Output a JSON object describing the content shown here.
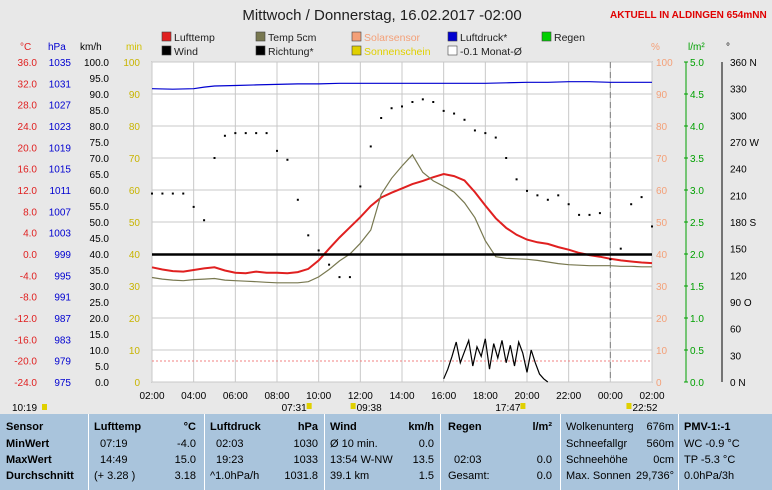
{
  "header": {
    "title": "Mittwoch / Donnerstag, 16.02.2017  -02:00",
    "location": "AKTUELL IN ALDINGEN 654mNN"
  },
  "legend": [
    {
      "label": "Lufttemp",
      "color": "#e02020"
    },
    {
      "label": "Temp 5cm",
      "color": "#787850"
    },
    {
      "label": "Solarsensor",
      "color": "#f4a078",
      "faded": true
    },
    {
      "label": "Luftdruck*",
      "color": "#0000d0"
    },
    {
      "label": "Regen",
      "color": "#00d000"
    },
    {
      "label": "Wind",
      "color": "#000000"
    },
    {
      "label": "Richtung*",
      "color": "#000000"
    },
    {
      "label": "Sonnenschein",
      "color": "#e0d000",
      "faded": true
    },
    {
      "label": "-0.1 Monat-Ø",
      "color": "#ffffff"
    }
  ],
  "axis_units": {
    "temp": "°C",
    "pressure": "hPa",
    "wind": "km/h",
    "sun_min": "min",
    "solar_pct": "%",
    "rain": "l/m²",
    "direction": "°"
  },
  "chart_data": {
    "type": "line",
    "x": [
      "02:00",
      "04:00",
      "06:00",
      "08:00",
      "10:00",
      "12:00",
      "14:00",
      "16:00",
      "18:00",
      "20:00",
      "22:00",
      "00:00",
      "02:00"
    ],
    "time_start": "02:00",
    "ylim_temp": [
      -24.0,
      36.0
    ],
    "ylim_pressure": [
      975,
      1035
    ],
    "ylim_wind": [
      0,
      100
    ],
    "ylim_pct": [
      0,
      100
    ],
    "ylim_rain": [
      0,
      5
    ],
    "ylim_dir": [
      0,
      360
    ],
    "ticks": {
      "temp": [
        "36.0",
        "32.0",
        "28.0",
        "24.0",
        "20.0",
        "16.0",
        "12.0",
        "8.0",
        "4.0",
        "0.0",
        "-4.0",
        "-8.0",
        "-12.0",
        "-16.0",
        "-20.0",
        "-24.0"
      ],
      "pressure": [
        "1035",
        "1031",
        "1027",
        "1023",
        "1019",
        "1015",
        "1011",
        "1007",
        "1003",
        "999",
        "995",
        "991",
        "987",
        "983",
        "979",
        "975"
      ],
      "wind": [
        "100.0",
        "95.0",
        "90.0",
        "85.0",
        "80.0",
        "75.0",
        "70.0",
        "65.0",
        "60.0",
        "55.0",
        "50.0",
        "45.0",
        "40.0",
        "35.0",
        "30.0",
        "25.0",
        "20.0",
        "15.0",
        "10.0",
        "5.0",
        "0.0"
      ],
      "min": [
        "100",
        "90",
        "80",
        "70",
        "60",
        "50",
        "40",
        "30",
        "20",
        "10",
        "0"
      ],
      "pct": [
        "100",
        "90",
        "80",
        "70",
        "60",
        "50",
        "40",
        "30",
        "20",
        "10",
        "0"
      ],
      "rain": [
        "5.0",
        "4.5",
        "4.0",
        "3.5",
        "3.0",
        "2.5",
        "2.0",
        "1.5",
        "1.0",
        "0.5",
        "0.0"
      ],
      "dir": [
        "360 N",
        "330",
        "300",
        "270 W",
        "240",
        "210",
        "180 S",
        "150",
        "120",
        "90 O",
        "60",
        "30",
        "0   N"
      ]
    },
    "series": [
      {
        "name": "Lufttemp",
        "color": "#e02020",
        "x": [
          0,
          0.5,
          1,
          1.5,
          2,
          2.5,
          3,
          3.5,
          4,
          4.5,
          5,
          5.5,
          6,
          6.5,
          7,
          7.5,
          8,
          8.5,
          9,
          9.5,
          10,
          10.5,
          11,
          11.5,
          12,
          12.5,
          13,
          13.5,
          14,
          14.5,
          15,
          15.5,
          16,
          16.5,
          17,
          17.5,
          18,
          18.5,
          19,
          19.5,
          20,
          20.5,
          21,
          21.5,
          22,
          22.5,
          23,
          23.5,
          24
        ],
        "y": [
          -2.5,
          -2.9,
          -3.2,
          -3.3,
          -3.0,
          -2.7,
          -2.5,
          -3.1,
          -3.5,
          -3.6,
          -3.3,
          -3.5,
          -3.5,
          -3.6,
          -3.4,
          -2.8,
          -1.2,
          1.0,
          3.1,
          5.0,
          6.9,
          9.0,
          10.6,
          11.5,
          12.3,
          13.1,
          13.7,
          14.4,
          15.0,
          14.6,
          13.8,
          11.6,
          9.1,
          6.7,
          4.9,
          3.6,
          2.7,
          2.2,
          1.9,
          1.3,
          0.8,
          0.2,
          -0.2,
          -0.5,
          -0.9,
          -1.2,
          -1.4,
          -1.6,
          -1.7
        ]
      },
      {
        "name": "Temp 5cm",
        "color": "#787850",
        "x": [
          0,
          0.5,
          1,
          1.5,
          2,
          2.5,
          3,
          3.5,
          4,
          4.5,
          5,
          5.5,
          6,
          6.5,
          7,
          7.5,
          8,
          8.5,
          9,
          9.5,
          10,
          10.5,
          11,
          11.5,
          12,
          12.5,
          13,
          13.5,
          14,
          14.5,
          15,
          15.5,
          16,
          16.5,
          17,
          17.5,
          18,
          18.5,
          19,
          19.5,
          20,
          20.5,
          21,
          21.5,
          22,
          22.5,
          23,
          23.5,
          24
        ],
        "y": [
          -4.4,
          -4.7,
          -4.9,
          -5.0,
          -4.8,
          -4.7,
          -4.6,
          -4.9,
          -5.0,
          -5.1,
          -5.2,
          -5.3,
          -5.4,
          -5.4,
          -5.4,
          -5.2,
          -4.3,
          -2.9,
          -1.3,
          0.0,
          2.0,
          4.5,
          11.2,
          14.2,
          16.5,
          18.6,
          15.3,
          13.7,
          12.7,
          11.6,
          9.6,
          6.8,
          2.5,
          -0.5,
          -0.8,
          -0.9,
          -1.0,
          -1.2,
          -1.5,
          -1.8,
          -2.0,
          -2.1,
          -2.2,
          -2.2,
          -2.2,
          -2.3,
          -2.3,
          -2.4,
          -2.4
        ]
      },
      {
        "name": "Luftdruck*",
        "color": "#0000d0",
        "x": [
          0,
          1,
          2,
          2.5,
          3,
          4,
          5,
          6,
          7,
          8,
          9,
          10,
          11,
          12,
          13,
          14,
          15,
          16,
          17,
          18,
          19,
          20,
          21,
          22,
          23,
          24
        ],
        "y": [
          1030.0,
          1029.9,
          1030.0,
          1030.3,
          1030.5,
          1030.6,
          1030.7,
          1030.8,
          1030.9,
          1030.9,
          1031.0,
          1031.0,
          1031.0,
          1031.0,
          1031.0,
          1031.0,
          1031.0,
          1031.0,
          1031.1,
          1031.2,
          1031.2,
          1031.3,
          1031.3,
          1031.2,
          1031.2,
          1031.2
        ]
      },
      {
        "name": "Monat-Ø",
        "color": "#000000",
        "x": [
          0,
          24
        ],
        "y": [
          -0.1,
          -0.1
        ]
      },
      {
        "name": "Richtung*",
        "color": "#000000",
        "x": [
          0,
          0.5,
          1,
          1.5,
          2,
          2.5,
          3,
          3.5,
          4,
          4.5,
          5,
          5.5,
          6,
          6.5,
          7,
          7.5,
          8,
          8.5,
          9,
          9.5,
          10,
          10.5,
          11,
          11.5,
          12,
          12.5,
          13,
          13.5,
          14,
          14.5,
          15,
          15.5,
          16,
          16.5,
          17,
          17.5,
          18,
          18.5,
          19,
          19.5,
          20,
          20.5,
          21,
          21.5,
          22,
          22.5,
          23,
          23.5,
          24
        ],
        "y": [
          212,
          212,
          212,
          212,
          197,
          182,
          252,
          277,
          280,
          280,
          280,
          280,
          260,
          250,
          205,
          165,
          148,
          132,
          118,
          118,
          220,
          265,
          297,
          308,
          310,
          315,
          318,
          315,
          305,
          302,
          295,
          283,
          280,
          275,
          252,
          228,
          215,
          210,
          205,
          210,
          200,
          188,
          188,
          190,
          138,
          150,
          200,
          208,
          175
        ]
      },
      {
        "name": "Wind",
        "color": "#000000",
        "x": [
          14.0,
          14.2,
          14.4,
          14.6,
          14.8,
          15.0,
          15.2,
          15.4,
          15.6,
          15.8,
          16.0,
          16.2,
          16.4,
          16.6,
          16.8,
          17.0,
          17.2,
          17.4,
          17.6,
          17.8,
          18.0,
          18.2,
          18.4,
          18.6,
          18.8,
          19.0
        ],
        "y": [
          1.0,
          4.0,
          8.0,
          12.5,
          6.0,
          9.5,
          13.0,
          5.0,
          11.0,
          8.0,
          13.5,
          4.0,
          12.0,
          7.5,
          13.0,
          6.0,
          11.5,
          5.0,
          12.5,
          9.0,
          3.0,
          10.0,
          6.0,
          2.5,
          1.0,
          0.0
        ]
      }
    ],
    "markers": [
      {
        "label": "07:31"
      },
      {
        "label": "09:38"
      },
      {
        "label": "17:47"
      },
      {
        "label": "22:52"
      }
    ],
    "now_label": "10:19"
  },
  "table": {
    "sensor": {
      "header": "Sensor",
      "rows": [
        "MinWert",
        "MaxWert",
        "Durchschnitt"
      ]
    },
    "lufttemp": {
      "header": "Lufttemp",
      "unit": "°C",
      "rows": [
        [
          "07:19",
          "-4.0"
        ],
        [
          "14:49",
          "15.0"
        ],
        [
          "(+ 3.28 )",
          "3.18"
        ]
      ]
    },
    "luftdruck": {
      "header": "Luftdruck",
      "unit": "hPa",
      "rows": [
        [
          "02:03",
          "1030"
        ],
        [
          "19:23",
          "1033"
        ],
        [
          "^1.0hPa/h",
          "1031.8"
        ]
      ]
    },
    "wind": {
      "header": "Wind",
      "unit": "km/h",
      "rows": [
        [
          "Ø 10 min.",
          "0.0"
        ],
        [
          "13:54  W-NW",
          "13.5"
        ],
        [
          "39.1 km",
          "1.5"
        ]
      ]
    },
    "regen": {
      "header": "Regen",
      "unit": "l/m²",
      "rows": [
        [
          "",
          ""
        ],
        [
          "02:03",
          "0.0"
        ],
        [
          "Gesamt:",
          "0.0"
        ]
      ]
    },
    "wolken": {
      "rows": [
        [
          "Wolkenunterg",
          "676m"
        ],
        [
          "Schneefallgr",
          "560m"
        ],
        [
          "Schneehöhe",
          "0cm"
        ],
        [
          "Max. Sonnen",
          "29,736°"
        ]
      ]
    },
    "pmv": {
      "header": "PMV-1:-1",
      "rows": [
        "WC -0.9 °C",
        "TP -5.3 °C",
        "0.0hPa/3h"
      ]
    }
  }
}
